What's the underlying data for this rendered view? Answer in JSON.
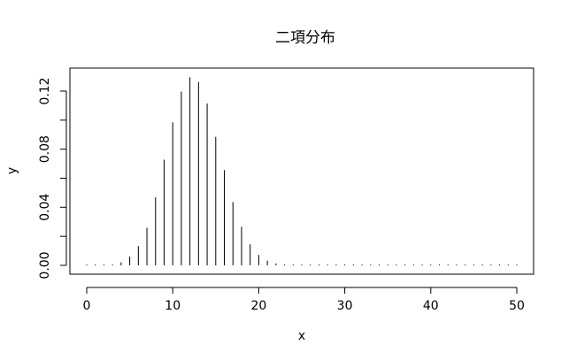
{
  "chart_data": {
    "type": "bar",
    "title": "二項分布",
    "xlabel": "x",
    "ylabel": "y",
    "xlim": [
      0,
      50
    ],
    "ylim": [
      0,
      0.13
    ],
    "grid": false,
    "x_ticks": [
      0,
      10,
      20,
      30,
      40,
      50
    ],
    "y_ticks": [
      0.0,
      0.04,
      0.08,
      0.12
    ],
    "y_tick_labels": [
      "0.00",
      "0.04",
      "0.08",
      "0.12"
    ],
    "x_tick_labels": [
      "0",
      "10",
      "20",
      "30",
      "40",
      "50"
    ],
    "x": [
      0,
      1,
      2,
      3,
      4,
      5,
      6,
      7,
      8,
      9,
      10,
      11,
      12,
      13,
      14,
      15,
      16,
      17,
      18,
      19,
      20,
      21,
      22,
      23,
      24,
      25,
      26,
      27,
      28,
      29,
      30,
      31,
      32,
      33,
      34,
      35,
      36,
      37,
      38,
      39,
      40,
      41,
      42,
      43,
      44,
      45,
      46,
      47,
      48,
      49,
      50
    ],
    "values": [
      0.0,
      0.0,
      0.0001,
      0.0005,
      0.0021,
      0.006,
      0.0133,
      0.0259,
      0.0468,
      0.0728,
      0.0985,
      0.1196,
      0.1295,
      0.1263,
      0.1115,
      0.0885,
      0.0656,
      0.0436,
      0.0266,
      0.0145,
      0.0072,
      0.0032,
      0.0013,
      0.0005,
      0.0002,
      0.0001,
      0.0,
      0.0,
      0.0,
      0.0,
      0.0,
      0.0,
      0.0,
      0.0,
      0.0,
      0.0,
      0.0,
      0.0,
      0.0,
      0.0,
      0.0,
      0.0,
      0.0,
      0.0,
      0.0,
      0.0,
      0.0,
      0.0,
      0.0,
      0.0,
      0.0
    ]
  }
}
